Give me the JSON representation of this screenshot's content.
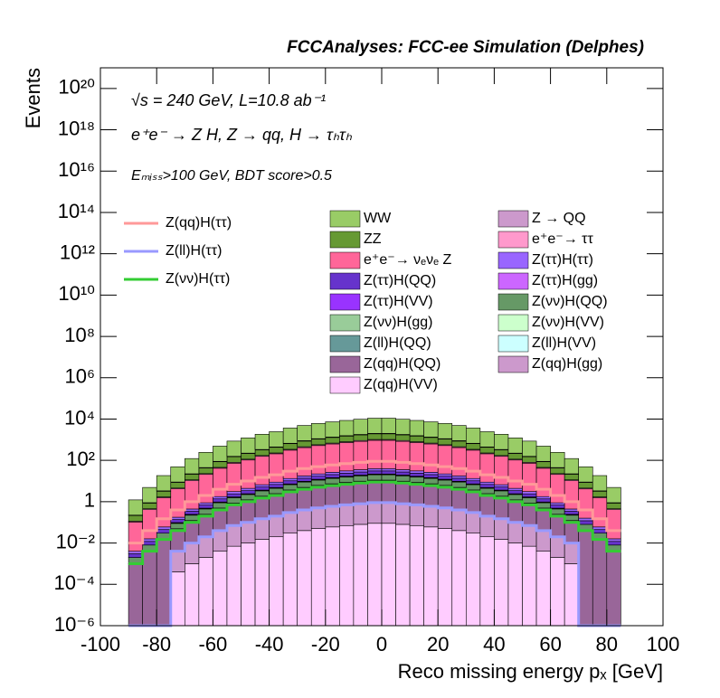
{
  "chart_data": {
    "type": "stacked_histogram",
    "title": "FCCAnalyses: FCC-ee Simulation (Delphes)",
    "annotations": [
      "√s = 240 GeV, L=10.8 ab⁻¹",
      "e⁺e⁻ → Z H, Z → qq, H → τₕτₕ",
      "Eₘᵢₛₛ>100 GeV, BDT score>0.5"
    ],
    "xlabel": "Reco missing energy pₓ [GeV]",
    "ylabel": "Events",
    "log_y": true,
    "xlim": [
      -100,
      100
    ],
    "xticks": [
      -100,
      -80,
      -60,
      -40,
      -20,
      0,
      20,
      40,
      60,
      80,
      100
    ],
    "ylim": [
      1e-06,
      1e+21
    ],
    "yticks": [
      {
        "value": 1e-06,
        "label": "10⁻⁶"
      },
      {
        "value": 0.0001,
        "label": "10⁻⁴"
      },
      {
        "value": 0.01,
        "label": "10⁻²"
      },
      1,
      {
        "value": 100,
        "label": "10²"
      },
      {
        "value": 10000,
        "label": "10⁴"
      },
      {
        "value": 1000000.0,
        "label": "10⁶"
      },
      {
        "value": 100000000.0,
        "label": "10⁸"
      },
      {
        "value": 10000000000.0,
        "label": "10¹⁰"
      },
      {
        "value": 1000000000000.0,
        "label": "10¹²"
      },
      {
        "value": 100000000000000.0,
        "label": "10¹⁴"
      },
      {
        "value": 1e+16,
        "label": "10¹⁶"
      },
      {
        "value": 1e+18,
        "label": "10¹⁸"
      },
      {
        "value": 1e+20,
        "label": "10²⁰"
      }
    ],
    "bins": [
      -90,
      -85,
      -80,
      -75,
      -70,
      -65,
      -60,
      -55,
      -50,
      -45,
      -40,
      -35,
      -30,
      -25,
      -20,
      -15,
      -10,
      -5,
      0,
      5,
      10,
      15,
      20,
      25,
      30,
      35,
      40,
      45,
      50,
      55,
      60,
      65,
      70,
      75,
      80,
      85
    ],
    "series": [
      {
        "name": "WW",
        "color": "#99cc66",
        "values": [
          1,
          4,
          15,
          40,
          100,
          200,
          400,
          700,
          1000,
          1500,
          2000,
          3000,
          4000,
          5000,
          6000,
          7000,
          8000,
          9000,
          9000,
          8000,
          7000,
          6000,
          5000,
          4000,
          3000,
          2000,
          1500,
          1000,
          700,
          400,
          200,
          100,
          40,
          15,
          4
        ]
      },
      {
        "name": "Z → QQ",
        "color": "#cc99cc",
        "values": [
          0.01,
          0.04,
          0.15,
          0.4,
          1,
          2,
          4,
          7,
          10,
          15,
          20,
          30,
          40,
          50,
          60,
          70,
          80,
          90,
          90,
          80,
          70,
          60,
          50,
          40,
          30,
          20,
          15,
          10,
          7,
          4,
          2,
          1,
          0.4,
          0.15,
          0.04
        ]
      },
      {
        "name": "ZZ",
        "color": "#669933",
        "values": [
          0.1,
          0.4,
          1.5,
          4,
          10,
          20,
          40,
          70,
          100,
          150,
          200,
          300,
          400,
          500,
          600,
          700,
          800,
          900,
          900,
          800,
          700,
          600,
          500,
          400,
          300,
          200,
          150,
          100,
          70,
          40,
          20,
          10,
          4,
          1.5,
          0.4
        ]
      },
      {
        "name": "e⁺e⁻→ ττ",
        "color": "#ff99cc",
        "values": [
          0.01,
          0.04,
          0.15,
          0.4,
          1,
          2,
          4,
          7,
          10,
          15,
          20,
          30,
          40,
          50,
          60,
          70,
          80,
          90,
          90,
          80,
          70,
          60,
          50,
          40,
          30,
          20,
          15,
          10,
          7,
          4,
          2,
          1,
          0.4,
          0.15,
          0.04
        ]
      },
      {
        "name": "e⁺e⁻→ νₑνₑ Z",
        "color": "#ff6699",
        "values": [
          0.1,
          0.4,
          1.5,
          4,
          10,
          20,
          40,
          70,
          100,
          150,
          200,
          300,
          400,
          500,
          600,
          700,
          800,
          900,
          900,
          800,
          700,
          600,
          500,
          400,
          300,
          200,
          150,
          100,
          70,
          40,
          20,
          10,
          4,
          1.5,
          0.4
        ]
      },
      {
        "name": "Z(ττ)H(ττ)",
        "color": "#9966ff",
        "values": [
          0.001,
          0.004,
          0.015,
          0.04,
          0.1,
          0.2,
          0.4,
          0.7,
          1,
          1.5,
          2,
          3,
          4,
          5,
          6,
          7,
          8,
          9,
          9,
          8,
          7,
          6,
          5,
          4,
          3,
          2,
          1.5,
          1,
          0.7,
          0.4,
          0.2,
          0.1,
          0.04,
          0.015,
          0.004
        ]
      },
      {
        "name": "Z(ττ)H(QQ)",
        "color": "#6633cc",
        "values": [
          0.001,
          0.004,
          0.015,
          0.04,
          0.1,
          0.2,
          0.4,
          0.7,
          1,
          1.5,
          2,
          3,
          4,
          5,
          6,
          7,
          8,
          9,
          9,
          8,
          7,
          6,
          5,
          4,
          3,
          2,
          1.5,
          1,
          0.7,
          0.4,
          0.2,
          0.1,
          0.04,
          0.015,
          0.004
        ]
      },
      {
        "name": "Z(ττ)H(gg)",
        "color": "#cc66ff",
        "values": [
          0,
          0,
          0,
          0.004,
          0.01,
          0.02,
          0.04,
          0.07,
          0.1,
          0.15,
          0.2,
          0.3,
          0.4,
          0.5,
          0.6,
          0.7,
          0.8,
          0.9,
          0.9,
          0.8,
          0.7,
          0.6,
          0.5,
          0.4,
          0.3,
          0.2,
          0.15,
          0.1,
          0.07,
          0.04,
          0.02,
          0.01,
          0,
          0,
          0
        ]
      },
      {
        "name": "Z(ττ)H(VV)",
        "color": "#9933ff",
        "values": [
          0,
          0,
          0,
          0.004,
          0.01,
          0.02,
          0.04,
          0.07,
          0.1,
          0.15,
          0.2,
          0.3,
          0.4,
          0.5,
          0.6,
          0.7,
          0.8,
          0.9,
          0.9,
          0.8,
          0.7,
          0.6,
          0.5,
          0.4,
          0.3,
          0.2,
          0.15,
          0.1,
          0.07,
          0.04,
          0.02,
          0.01,
          0,
          0,
          0
        ]
      },
      {
        "name": "Z(νν)H(QQ)",
        "color": "#669966",
        "values": [
          0.001,
          0.004,
          0.015,
          0.04,
          0.1,
          0.2,
          0.4,
          0.7,
          1,
          1.5,
          2,
          3,
          4,
          5,
          6,
          7,
          8,
          9,
          9,
          8,
          7,
          6,
          5,
          4,
          3,
          2,
          1.5,
          1,
          0.7,
          0.4,
          0.2,
          0.1,
          0.04,
          0.015,
          0.004
        ]
      },
      {
        "name": "Z(νν)H(gg)",
        "color": "#99cc99",
        "values": [
          0,
          0,
          0,
          0.004,
          0.01,
          0.02,
          0.04,
          0.07,
          0.1,
          0.15,
          0.2,
          0.3,
          0.4,
          0.5,
          0.6,
          0.7,
          0.8,
          0.9,
          0.9,
          0.8,
          0.7,
          0.6,
          0.5,
          0.4,
          0.3,
          0.2,
          0.15,
          0.1,
          0.07,
          0.04,
          0.02,
          0.01,
          0,
          0,
          0
        ]
      },
      {
        "name": "Z(νν)H(VV)",
        "color": "#ccffcc",
        "values": [
          0,
          0,
          0,
          0.0004,
          0.001,
          0.002,
          0.004,
          0.007,
          0.01,
          0.015,
          0.02,
          0.03,
          0.04,
          0.05,
          0.06,
          0.07,
          0.08,
          0.09,
          0.09,
          0.08,
          0.07,
          0.06,
          0.05,
          0.04,
          0.03,
          0.02,
          0.015,
          0.01,
          0.007,
          0.004,
          0.002,
          0.001,
          0,
          0,
          0
        ]
      },
      {
        "name": "Z(ll)H(QQ)",
        "color": "#669999",
        "values": [
          0,
          0,
          0,
          0.0004,
          0.001,
          0.002,
          0.004,
          0.007,
          0.01,
          0.015,
          0.02,
          0.03,
          0.04,
          0.05,
          0.06,
          0.07,
          0.08,
          0.09,
          0.09,
          0.08,
          0.07,
          0.06,
          0.05,
          0.04,
          0.03,
          0.02,
          0.015,
          0.01,
          0.007,
          0.004,
          0.002,
          0.001,
          0,
          0,
          0
        ]
      },
      {
        "name": "Z(ll)H(VV)",
        "color": "#ccffff",
        "values": [
          0,
          0,
          0,
          0,
          0,
          0,
          0,
          0,
          0,
          0,
          0,
          0,
          0.004,
          0.005,
          0.006,
          0.007,
          0.008,
          0.009,
          0.009,
          0.008,
          0.007,
          0.006,
          0.005,
          0.004,
          0.003,
          0,
          0,
          0,
          0,
          0,
          0,
          0,
          0,
          0,
          0
        ]
      },
      {
        "name": "Z(qq)H(QQ)",
        "color": "#996699",
        "values": [
          0.001,
          0.004,
          0.015,
          0.04,
          0.1,
          0.2,
          0.4,
          0.7,
          1,
          1.5,
          2,
          3,
          4,
          5,
          6,
          7,
          8,
          9,
          9,
          8,
          7,
          6,
          5,
          4,
          3,
          2,
          1.5,
          1,
          0.7,
          0.4,
          0.2,
          0.1,
          0.04,
          0.015,
          0.004
        ]
      },
      {
        "name": "Z(qq)H(gg)",
        "color": "#cc99cc",
        "values": [
          0,
          0,
          0,
          0.004,
          0.01,
          0.02,
          0.04,
          0.07,
          0.1,
          0.15,
          0.2,
          0.3,
          0.4,
          0.5,
          0.6,
          0.7,
          0.8,
          0.9,
          0.9,
          0.8,
          0.7,
          0.6,
          0.5,
          0.4,
          0.3,
          0.2,
          0.15,
          0.1,
          0.07,
          0.04,
          0.02,
          0.01,
          0,
          0,
          0
        ]
      },
      {
        "name": "Z(qq)H(VV)",
        "color": "#ffccff",
        "values": [
          0,
          0,
          0,
          0.0004,
          0.001,
          0.002,
          0.004,
          0.007,
          0.01,
          0.015,
          0.02,
          0.03,
          0.04,
          0.05,
          0.06,
          0.07,
          0.08,
          0.09,
          0.09,
          0.08,
          0.07,
          0.06,
          0.05,
          0.04,
          0.03,
          0.02,
          0.015,
          0.01,
          0.007,
          0.004,
          0.002,
          0.001,
          0,
          0,
          0
        ]
      }
    ],
    "signals": [
      {
        "name": "Z(qq)H(ττ)",
        "color": "#ff9999",
        "values": [
          0.01,
          0.04,
          0.15,
          0.4,
          1,
          2,
          4,
          7,
          10,
          15,
          20,
          30,
          40,
          50,
          60,
          70,
          80,
          90,
          90,
          80,
          70,
          60,
          50,
          40,
          30,
          20,
          15,
          10,
          7,
          4,
          2,
          1,
          0.4,
          0.15,
          0.04
        ]
      },
      {
        "name": "Z(ll)H(ττ)",
        "color": "#9999ff",
        "values": [
          0,
          0,
          0,
          0.004,
          0.01,
          0.02,
          0.04,
          0.07,
          0.1,
          0.15,
          0.2,
          0.3,
          0.4,
          0.5,
          0.6,
          0.7,
          0.8,
          0.9,
          0.9,
          0.8,
          0.7,
          0.6,
          0.5,
          0.4,
          0.3,
          0.2,
          0.15,
          0.1,
          0.07,
          0.04,
          0.02,
          0.01,
          0,
          0,
          0
        ]
      },
      {
        "name": "Z(νν)H(ττ)",
        "color": "#33cc33",
        "values": [
          0.001,
          0.004,
          0.015,
          0.04,
          0.1,
          0.2,
          0.4,
          0.7,
          1,
          1.5,
          2,
          3,
          4,
          5,
          6,
          7,
          8,
          9,
          9,
          8,
          7,
          6,
          5,
          4,
          3,
          2,
          1.5,
          1,
          0.7,
          0.4,
          0.2,
          0.1,
          0.04,
          0.015,
          0.004
        ]
      }
    ]
  }
}
